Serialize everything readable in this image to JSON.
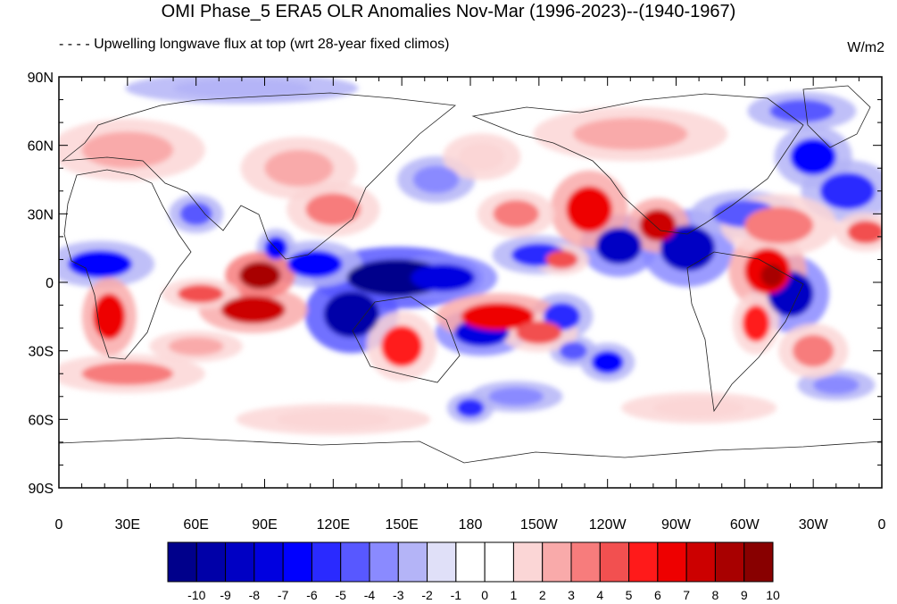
{
  "map": {
    "title": "OMI Phase_5 ERA5 OLR Anomalies Nov-Mar (1996-2023)--(1940-1967)",
    "subtitle": "- - - - Upwelling longwave flux at top  (wrt 28-year fixed climos)",
    "units": "W/m2",
    "lat_ticks": [
      {
        "value": 90,
        "label": "90N"
      },
      {
        "value": 60,
        "label": "60N"
      },
      {
        "value": 30,
        "label": "30N"
      },
      {
        "value": 0,
        "label": "0"
      },
      {
        "value": -30,
        "label": "30S"
      },
      {
        "value": -60,
        "label": "60S"
      },
      {
        "value": -90,
        "label": "90S"
      }
    ],
    "lon_ticks": [
      {
        "value": 0,
        "label": "0"
      },
      {
        "value": 30,
        "label": "30E"
      },
      {
        "value": 60,
        "label": "60E"
      },
      {
        "value": 90,
        "label": "90E"
      },
      {
        "value": 120,
        "label": "120E"
      },
      {
        "value": 150,
        "label": "150E"
      },
      {
        "value": 180,
        "label": "180"
      },
      {
        "value": 210,
        "label": "150W"
      },
      {
        "value": 240,
        "label": "120W"
      },
      {
        "value": 270,
        "label": "90W"
      },
      {
        "value": 300,
        "label": "60W"
      },
      {
        "value": 330,
        "label": "30W"
      },
      {
        "value": 360,
        "label": "0"
      }
    ],
    "lon_range": [
      0,
      360
    ],
    "lat_range": [
      -90,
      90
    ]
  },
  "colorbar": {
    "labels": [
      "-10",
      "-9",
      "-8",
      "-7",
      "-6",
      "-5",
      "-4",
      "-3",
      "-2",
      "-1",
      "0",
      "1",
      "2",
      "3",
      "4",
      "5",
      "6",
      "7",
      "8",
      "9",
      "10"
    ],
    "colors": [
      "#00008b",
      "#0000a8",
      "#0000c4",
      "#0000e0",
      "#0000ff",
      "#2a2aff",
      "#5858ff",
      "#8a8aff",
      "#b4b4f7",
      "#e0e0f8",
      "#ffffff",
      "#ffffff",
      "#fbd6d6",
      "#f9aaaa",
      "#f77c7c",
      "#f25050",
      "#ff1a1a",
      "#ee0000",
      "#cc0000",
      "#a80000",
      "#880000"
    ]
  },
  "anomalies": [
    {
      "lon": 148,
      "lat": 2,
      "rx": 22,
      "ry": 8,
      "level": -10
    },
    {
      "lon": 128,
      "lat": -14,
      "rx": 12,
      "ry": 10,
      "level": -9
    },
    {
      "lon": 168,
      "lat": 2,
      "rx": 14,
      "ry": 6,
      "level": -7
    },
    {
      "lon": 112,
      "lat": 8,
      "rx": 12,
      "ry": 6,
      "level": -6
    },
    {
      "lon": 18,
      "lat": 8,
      "rx": 14,
      "ry": 6,
      "level": -6
    },
    {
      "lon": 95,
      "lat": 15,
      "rx": 5,
      "ry": 5,
      "level": -6
    },
    {
      "lon": 245,
      "lat": 16,
      "rx": 10,
      "ry": 8,
      "level": -8
    },
    {
      "lon": 275,
      "lat": 15,
      "rx": 12,
      "ry": 10,
      "level": -8
    },
    {
      "lon": 210,
      "lat": 12,
      "rx": 12,
      "ry": 5,
      "level": -5
    },
    {
      "lon": 320,
      "lat": -5,
      "rx": 10,
      "ry": 10,
      "level": -8
    },
    {
      "lon": 185,
      "lat": -22,
      "rx": 12,
      "ry": 6,
      "level": -7
    },
    {
      "lon": 220,
      "lat": -15,
      "rx": 8,
      "ry": 6,
      "level": -5
    },
    {
      "lon": 240,
      "lat": -35,
      "rx": 7,
      "ry": 5,
      "level": -6
    },
    {
      "lon": 225,
      "lat": -30,
      "rx": 6,
      "ry": 4,
      "level": -4
    },
    {
      "lon": 345,
      "lat": 40,
      "rx": 12,
      "ry": 8,
      "level": -5
    },
    {
      "lon": 330,
      "lat": 55,
      "rx": 10,
      "ry": 8,
      "level": -6
    },
    {
      "lon": 325,
      "lat": 75,
      "rx": 14,
      "ry": 5,
      "level": -4
    },
    {
      "lon": 165,
      "lat": 45,
      "rx": 10,
      "ry": 6,
      "level": -3
    },
    {
      "lon": 180,
      "lat": -55,
      "rx": 6,
      "ry": 4,
      "level": -5
    },
    {
      "lon": 60,
      "lat": 30,
      "rx": 7,
      "ry": 5,
      "level": -4
    },
    {
      "lon": 200,
      "lat": -50,
      "rx": 12,
      "ry": 4,
      "level": -3
    },
    {
      "lon": 300,
      "lat": 30,
      "rx": 14,
      "ry": 6,
      "level": -4
    },
    {
      "lon": 80,
      "lat": 85,
      "rx": 30,
      "ry": 4,
      "level": -2
    },
    {
      "lon": 340,
      "lat": -45,
      "rx": 10,
      "ry": 4,
      "level": -3
    },
    {
      "lon": 310,
      "lat": 5,
      "rx": 10,
      "ry": 10,
      "level": 7
    },
    {
      "lon": 312,
      "lat": 3,
      "rx": 5,
      "ry": 5,
      "level": 9
    },
    {
      "lon": 192,
      "lat": -15,
      "rx": 16,
      "ry": 6,
      "level": 7
    },
    {
      "lon": 210,
      "lat": -22,
      "rx": 10,
      "ry": 5,
      "level": 5
    },
    {
      "lon": 85,
      "lat": -12,
      "rx": 14,
      "ry": 6,
      "level": 8
    },
    {
      "lon": 88,
      "lat": 3,
      "rx": 9,
      "ry": 6,
      "level": 9
    },
    {
      "lon": 62,
      "lat": -5,
      "rx": 10,
      "ry": 4,
      "level": 5
    },
    {
      "lon": 22,
      "lat": -15,
      "rx": 7,
      "ry": 10,
      "level": 7
    },
    {
      "lon": 150,
      "lat": -28,
      "rx": 9,
      "ry": 9,
      "level": 6
    },
    {
      "lon": 232,
      "lat": 32,
      "rx": 10,
      "ry": 10,
      "level": 7
    },
    {
      "lon": 262,
      "lat": 25,
      "rx": 8,
      "ry": 7,
      "level": 8
    },
    {
      "lon": 305,
      "lat": -18,
      "rx": 6,
      "ry": 8,
      "level": 6
    },
    {
      "lon": 330,
      "lat": -30,
      "rx": 9,
      "ry": 7,
      "level": 4
    },
    {
      "lon": 315,
      "lat": 25,
      "rx": 15,
      "ry": 8,
      "level": 4
    },
    {
      "lon": 353,
      "lat": 22,
      "rx": 8,
      "ry": 5,
      "level": 5
    },
    {
      "lon": 120,
      "lat": 32,
      "rx": 12,
      "ry": 7,
      "level": 4
    },
    {
      "lon": 200,
      "lat": 30,
      "rx": 10,
      "ry": 6,
      "level": 4
    },
    {
      "lon": 220,
      "lat": 10,
      "rx": 7,
      "ry": 4,
      "level": 5
    },
    {
      "lon": 250,
      "lat": 65,
      "rx": 25,
      "ry": 7,
      "level": 3
    },
    {
      "lon": 30,
      "lat": 58,
      "rx": 20,
      "ry": 8,
      "level": 3
    },
    {
      "lon": 105,
      "lat": 50,
      "rx": 15,
      "ry": 8,
      "level": 3
    },
    {
      "lon": 30,
      "lat": -40,
      "rx": 20,
      "ry": 5,
      "level": 4
    },
    {
      "lon": 60,
      "lat": -28,
      "rx": 12,
      "ry": 4,
      "level": 3
    },
    {
      "lon": 185,
      "lat": 55,
      "rx": 10,
      "ry": 6,
      "level": 2
    },
    {
      "lon": 280,
      "lat": -55,
      "rx": 20,
      "ry": 4,
      "level": 2
    },
    {
      "lon": 120,
      "lat": -60,
      "rx": 25,
      "ry": 4,
      "level": 2
    }
  ]
}
